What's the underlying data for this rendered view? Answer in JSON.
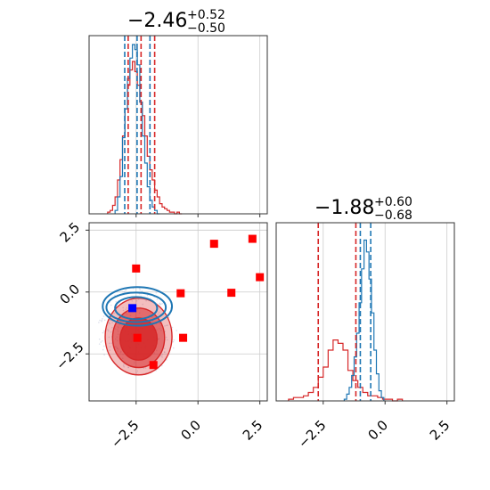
{
  "chart_data": {
    "type": "corner",
    "grid": true,
    "colors": {
      "blue": "#1f77b4",
      "red": "#d62728",
      "marker_red": "#ff0000",
      "marker_blue": "#0000ff"
    },
    "panels": {
      "hist_x": {
        "title": {
          "median": "−2.46",
          "plus": "+0.52",
          "minus": "−0.50"
        },
        "xlim": [
          -4.4,
          2.8
        ],
        "xticks": [
          -2.5,
          0.0,
          2.5
        ],
        "quantiles": {
          "blue": [
            -2.96,
            -2.46,
            -1.94
          ],
          "red": [
            -2.82,
            -2.3,
            -1.75
          ]
        },
        "blue_hist": {
          "x": [
            -3.3,
            -3.2,
            -3.1,
            -3.0,
            -2.9,
            -2.8,
            -2.7,
            -2.6,
            -2.5,
            -2.4,
            -2.3,
            -2.2,
            -2.1,
            -2.0,
            -1.9,
            -1.8,
            -1.7,
            -1.6
          ],
          "y": [
            0.02,
            0.1,
            0.22,
            0.45,
            0.62,
            0.8,
            0.92,
            1.0,
            0.97,
            0.88,
            0.66,
            0.46,
            0.3,
            0.16,
            0.08,
            0.04,
            0.02,
            0.0
          ]
        },
        "red_hist": {
          "x": [
            -3.6,
            -3.5,
            -3.4,
            -3.3,
            -3.2,
            -3.1,
            -3.0,
            -2.9,
            -2.8,
            -2.7,
            -2.6,
            -2.5,
            -2.4,
            -2.3,
            -2.2,
            -2.1,
            -2.0,
            -1.9,
            -1.8,
            -1.7,
            -1.6,
            -1.5,
            -1.4,
            -1.3,
            -1.2,
            -1.1,
            -1.0,
            -0.9,
            -0.8,
            -0.7
          ],
          "y": [
            0.01,
            0.02,
            0.05,
            0.1,
            0.2,
            0.32,
            0.46,
            0.62,
            0.76,
            0.85,
            0.9,
            0.84,
            0.76,
            0.66,
            0.58,
            0.46,
            0.34,
            0.26,
            0.2,
            0.14,
            0.1,
            0.06,
            0.04,
            0.03,
            0.02,
            0.01,
            0.01,
            0.0,
            0.01,
            0.0
          ]
        }
      },
      "hist_y": {
        "title": {
          "median": "−1.88",
          "plus": "+0.60",
          "minus": "−0.68"
        },
        "xlim": [
          -4.4,
          2.8
        ],
        "xticks": [
          -2.5,
          0.0,
          2.5
        ],
        "xticklabels": [
          "−2.5",
          "0.0",
          "2.5"
        ],
        "quantiles": {
          "blue": [
            -1.0,
            -0.58
          ],
          "red": [
            -2.7,
            -1.18
          ]
        },
        "blue_hist": {
          "x": [
            -1.6,
            -1.5,
            -1.4,
            -1.3,
            -1.2,
            -1.1,
            -1.0,
            -0.9,
            -0.8,
            -0.7,
            -0.6,
            -0.5,
            -0.4,
            -0.3,
            -0.2,
            -0.1
          ],
          "y": [
            0.01,
            0.04,
            0.08,
            0.15,
            0.26,
            0.4,
            0.58,
            0.78,
            0.95,
            0.88,
            0.72,
            0.52,
            0.3,
            0.16,
            0.06,
            0.02
          ]
        },
        "red_hist": {
          "x": [
            -3.8,
            -3.6,
            -3.4,
            -3.2,
            -3.0,
            -2.8,
            -2.6,
            -2.4,
            -2.2,
            -2.0,
            -1.8,
            -1.6,
            -1.4,
            -1.2,
            -1.0,
            -0.8,
            -0.6,
            -0.4,
            -0.2,
            0.0,
            0.2,
            0.4,
            0.6
          ],
          "y": [
            0.01,
            0.02,
            0.02,
            0.03,
            0.05,
            0.08,
            0.14,
            0.2,
            0.3,
            0.36,
            0.34,
            0.3,
            0.18,
            0.12,
            0.08,
            0.05,
            0.03,
            0.03,
            0.02,
            0.01,
            0.01,
            0.0,
            0.01
          ]
        }
      },
      "scatter_2d": {
        "xlim": [
          -4.4,
          2.8
        ],
        "ylim": [
          -4.4,
          2.8
        ],
        "xticks": [
          -2.5,
          0.0,
          2.5
        ],
        "xticklabels": [
          "−2.5",
          "0.0",
          "2.5"
        ],
        "yticks": [
          -2.5,
          0.0,
          2.5
        ],
        "yticklabels": [
          "−2.5",
          "0.0",
          "2.5"
        ],
        "blue_contours": [
          {
            "cx": -2.5,
            "cy": -0.65,
            "rx": 0.85,
            "ry": 0.45
          },
          {
            "cx": -2.5,
            "cy": -0.62,
            "rx": 1.2,
            "ry": 0.6
          },
          {
            "cx": -2.45,
            "cy": -0.58,
            "rx": 1.4,
            "ry": 0.78
          }
        ],
        "red_contours": [
          {
            "cx": -2.4,
            "cy": -1.9,
            "rx": 0.75,
            "ry": 0.85,
            "alpha": 0.85
          },
          {
            "cx": -2.4,
            "cy": -1.85,
            "rx": 1.05,
            "ry": 1.2,
            "alpha": 0.55
          },
          {
            "cx": -2.4,
            "cy": -1.8,
            "rx": 1.35,
            "ry": 1.55,
            "alpha": 0.3
          }
        ],
        "red_markers": [
          {
            "x": -2.5,
            "y": 0.95
          },
          {
            "x": 0.65,
            "y": 1.95
          },
          {
            "x": 2.2,
            "y": 2.15
          },
          {
            "x": 2.5,
            "y": 0.6
          },
          {
            "x": -0.7,
            "y": -0.05
          },
          {
            "x": 1.35,
            "y": -0.03
          },
          {
            "x": -0.6,
            "y": -1.85
          },
          {
            "x": -2.45,
            "y": -1.85
          },
          {
            "x": -1.8,
            "y": -2.95
          }
        ],
        "blue_markers": [
          {
            "x": -2.65,
            "y": -0.65
          }
        ]
      }
    }
  }
}
